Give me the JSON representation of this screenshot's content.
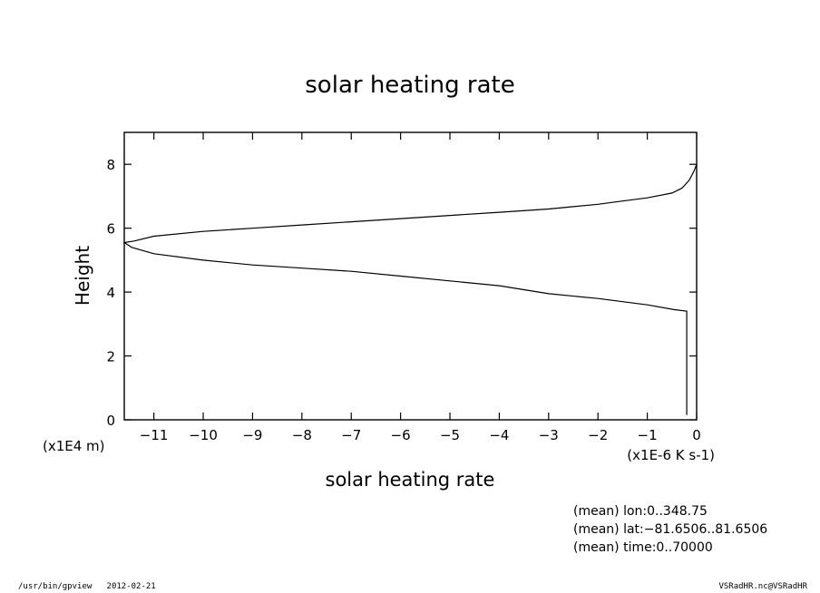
{
  "chart_data": {
    "type": "line",
    "title": "solar heating rate",
    "xlabel": "solar heating rate",
    "ylabel": "Height",
    "x_unit": "(x1E-6 K s-1)",
    "y_unit": "(x1E4 m)",
    "xlim": [
      -11.6,
      0
    ],
    "ylim": [
      0,
      9
    ],
    "x_ticks": [
      -11,
      -10,
      -9,
      -8,
      -7,
      -6,
      -5,
      -4,
      -3,
      -2,
      -1,
      0
    ],
    "y_ticks": [
      0,
      2,
      4,
      6,
      8
    ],
    "grid": false,
    "series": [
      {
        "points": [
          [
            -0.2,
            0.15
          ],
          [
            -0.2,
            3.4
          ],
          [
            -0.45,
            3.45
          ],
          [
            -1.0,
            3.6
          ],
          [
            -1.5,
            3.7
          ],
          [
            -2.0,
            3.8
          ],
          [
            -3.0,
            3.95
          ],
          [
            -3.6,
            4.1
          ],
          [
            -4.0,
            4.2
          ],
          [
            -5.0,
            4.35
          ],
          [
            -6.0,
            4.5
          ],
          [
            -7.0,
            4.65
          ],
          [
            -8.0,
            4.75
          ],
          [
            -9.0,
            4.85
          ],
          [
            -10.0,
            5.0
          ],
          [
            -11.0,
            5.2
          ],
          [
            -11.45,
            5.4
          ],
          [
            -11.6,
            5.55
          ],
          [
            -11.4,
            5.6
          ],
          [
            -11.0,
            5.75
          ],
          [
            -10.0,
            5.9
          ],
          [
            -9.0,
            6.0
          ],
          [
            -8.0,
            6.1
          ],
          [
            -7.0,
            6.2
          ],
          [
            -6.0,
            6.3
          ],
          [
            -5.0,
            6.4
          ],
          [
            -4.0,
            6.5
          ],
          [
            -3.0,
            6.6
          ],
          [
            -2.0,
            6.75
          ],
          [
            -1.5,
            6.85
          ],
          [
            -1.0,
            6.95
          ],
          [
            -0.5,
            7.1
          ],
          [
            -0.3,
            7.25
          ],
          [
            -0.15,
            7.5
          ],
          [
            -0.05,
            7.8
          ],
          [
            0.0,
            8.0
          ]
        ]
      }
    ]
  },
  "annotations": [
    "(mean) lon:0..348.75",
    "(mean) lat:−81.6506..81.6506",
    "(mean) time:0..70000"
  ],
  "footer": {
    "left": "/usr/bin/gpview   2012-02-21",
    "right": "VSRadHR.nc@VSRadHR"
  }
}
